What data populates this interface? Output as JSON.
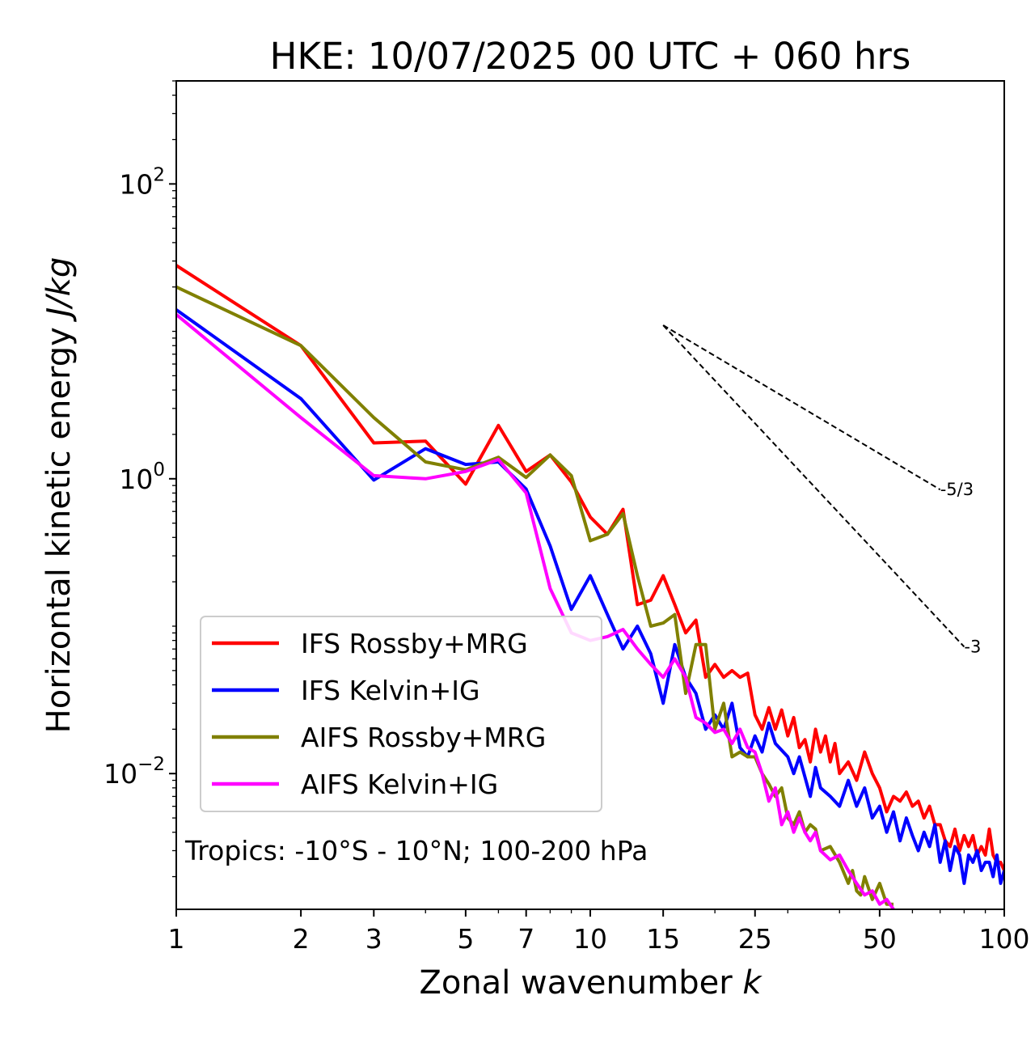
{
  "chart_data": {
    "type": "line",
    "title": "HKE: 10/07/2025 00 UTC + 060 hrs",
    "xlabel": "Zonal wavenumber",
    "xlabel_var": "k",
    "ylabel": "Horizontal kinetic energy",
    "ylabel_units": "J/kg",
    "xscale": "log",
    "yscale": "log",
    "xlim": [
      1,
      100
    ],
    "ylim": [
      0.0012,
      500
    ],
    "x_ticks": [
      {
        "value": 1,
        "label": "1"
      },
      {
        "value": 2,
        "label": "2"
      },
      {
        "value": 3,
        "label": "3"
      },
      {
        "value": 5,
        "label": "5"
      },
      {
        "value": 7,
        "label": "7"
      },
      {
        "value": 10,
        "label": "10"
      },
      {
        "value": 15,
        "label": "15"
      },
      {
        "value": 25,
        "label": "25"
      },
      {
        "value": 50,
        "label": "50"
      },
      {
        "value": 100,
        "label": "100"
      }
    ],
    "y_ticks": [
      {
        "value": 0.01,
        "base": "10",
        "exp": "−2"
      },
      {
        "value": 1,
        "base": "10",
        "exp": "0"
      },
      {
        "value": 100,
        "base": "10",
        "exp": "2"
      }
    ],
    "grid": false,
    "legend_position": "lower-left",
    "annotation": "Tropics: -10°S - 10°N; 100-200 hPa",
    "reference_lines": [
      {
        "label": "-5/3",
        "slope": -1.6667,
        "x": [
          15,
          70
        ],
        "y_start": 11.0
      },
      {
        "label": "-3",
        "slope": -3,
        "x": [
          15,
          80
        ],
        "y_start": 11.0
      }
    ],
    "series": [
      {
        "name": "IFS Rossby+MRG",
        "color": "#ff0000",
        "points": [
          [
            1,
            28
          ],
          [
            2,
            8
          ],
          [
            3,
            1.75
          ],
          [
            4,
            1.8
          ],
          [
            5,
            0.92
          ],
          [
            6,
            2.3
          ],
          [
            7,
            1.12
          ],
          [
            8,
            1.45
          ],
          [
            9,
            0.95
          ],
          [
            10,
            0.55
          ],
          [
            11,
            0.42
          ],
          [
            12,
            0.62
          ],
          [
            13,
            0.14
          ],
          [
            14,
            0.15
          ],
          [
            15,
            0.22
          ],
          [
            16,
            0.14
          ],
          [
            17,
            0.09
          ],
          [
            18,
            0.11
          ],
          [
            19,
            0.045
          ],
          [
            20,
            0.055
          ],
          [
            21,
            0.045
          ],
          [
            22,
            0.05
          ],
          [
            23,
            0.045
          ],
          [
            24,
            0.048
          ],
          [
            25,
            0.025
          ],
          [
            26,
            0.02
          ],
          [
            27,
            0.028
          ],
          [
            28,
            0.02
          ],
          [
            29,
            0.027
          ],
          [
            30,
            0.018
          ],
          [
            31,
            0.024
          ],
          [
            32,
            0.015
          ],
          [
            33,
            0.017
          ],
          [
            34,
            0.012
          ],
          [
            35,
            0.02
          ],
          [
            36,
            0.014
          ],
          [
            37,
            0.018
          ],
          [
            38,
            0.012
          ],
          [
            39,
            0.016
          ],
          [
            40,
            0.01
          ],
          [
            42,
            0.012
          ],
          [
            44,
            0.009
          ],
          [
            46,
            0.014
          ],
          [
            48,
            0.01
          ],
          [
            50,
            0.008
          ],
          [
            52,
            0.0055
          ],
          [
            54,
            0.007
          ],
          [
            56,
            0.0065
          ],
          [
            58,
            0.0075
          ],
          [
            60,
            0.006
          ],
          [
            62,
            0.0065
          ],
          [
            64,
            0.005
          ],
          [
            66,
            0.006
          ],
          [
            68,
            0.0045
          ],
          [
            70,
            0.0045
          ],
          [
            72,
            0.0035
          ],
          [
            74,
            0.0032
          ],
          [
            76,
            0.0042
          ],
          [
            78,
            0.003
          ],
          [
            80,
            0.0038
          ],
          [
            82,
            0.0032
          ],
          [
            84,
            0.0038
          ],
          [
            86,
            0.0028
          ],
          [
            88,
            0.0032
          ],
          [
            90,
            0.0028
          ],
          [
            92,
            0.0042
          ],
          [
            94,
            0.0028
          ],
          [
            96,
            0.0025
          ],
          [
            98,
            0.0025
          ],
          [
            100,
            0.0022
          ]
        ]
      },
      {
        "name": "IFS Kelvin+IG",
        "color": "#0000ff",
        "points": [
          [
            1,
            14
          ],
          [
            2,
            3.5
          ],
          [
            3,
            0.98
          ],
          [
            4,
            1.6
          ],
          [
            5,
            1.25
          ],
          [
            6,
            1.3
          ],
          [
            7,
            0.85
          ],
          [
            8,
            0.35
          ],
          [
            9,
            0.13
          ],
          [
            10,
            0.22
          ],
          [
            11,
            0.12
          ],
          [
            12,
            0.07
          ],
          [
            13,
            0.1
          ],
          [
            14,
            0.065
          ],
          [
            15,
            0.03
          ],
          [
            16,
            0.075
          ],
          [
            17,
            0.045
          ],
          [
            18,
            0.035
          ],
          [
            19,
            0.02
          ],
          [
            20,
            0.025
          ],
          [
            21,
            0.02
          ],
          [
            22,
            0.03
          ],
          [
            23,
            0.015
          ],
          [
            24,
            0.013
          ],
          [
            25,
            0.018
          ],
          [
            26,
            0.014
          ],
          [
            27,
            0.022
          ],
          [
            28,
            0.016
          ],
          [
            30,
            0.013
          ],
          [
            31,
            0.01
          ],
          [
            32,
            0.013
          ],
          [
            34,
            0.007
          ],
          [
            35,
            0.011
          ],
          [
            36,
            0.008
          ],
          [
            38,
            0.007
          ],
          [
            40,
            0.006
          ],
          [
            42,
            0.009
          ],
          [
            44,
            0.006
          ],
          [
            46,
            0.008
          ],
          [
            48,
            0.005
          ],
          [
            50,
            0.006
          ],
          [
            52,
            0.004
          ],
          [
            54,
            0.0055
          ],
          [
            56,
            0.0035
          ],
          [
            58,
            0.005
          ],
          [
            60,
            0.0038
          ],
          [
            62,
            0.003
          ],
          [
            64,
            0.004
          ],
          [
            66,
            0.0032
          ],
          [
            68,
            0.0045
          ],
          [
            70,
            0.0025
          ],
          [
            72,
            0.0035
          ],
          [
            74,
            0.0022
          ],
          [
            76,
            0.0032
          ],
          [
            78,
            0.0028
          ],
          [
            80,
            0.0018
          ],
          [
            82,
            0.0028
          ],
          [
            84,
            0.0025
          ],
          [
            86,
            0.003
          ],
          [
            88,
            0.0022
          ],
          [
            90,
            0.0025
          ],
          [
            92,
            0.0025
          ],
          [
            94,
            0.002
          ],
          [
            96,
            0.0028
          ],
          [
            98,
            0.0018
          ],
          [
            100,
            0.0022
          ]
        ]
      },
      {
        "name": "AIFS Rossby+MRG",
        "color": "#808000",
        "points": [
          [
            1,
            20
          ],
          [
            2,
            8
          ],
          [
            3,
            2.6
          ],
          [
            4,
            1.3
          ],
          [
            5,
            1.15
          ],
          [
            6,
            1.4
          ],
          [
            7,
            1.02
          ],
          [
            8,
            1.45
          ],
          [
            9,
            1.05
          ],
          [
            10,
            0.38
          ],
          [
            11,
            0.42
          ],
          [
            12,
            0.58
          ],
          [
            13,
            0.22
          ],
          [
            14,
            0.1
          ],
          [
            15,
            0.105
          ],
          [
            16,
            0.12
          ],
          [
            17,
            0.035
          ],
          [
            18,
            0.075
          ],
          [
            19,
            0.075
          ],
          [
            20,
            0.02
          ],
          [
            21,
            0.03
          ],
          [
            22,
            0.013
          ],
          [
            23,
            0.014
          ],
          [
            24,
            0.013
          ],
          [
            25,
            0.013
          ],
          [
            26,
            0.01
          ],
          [
            27,
            0.0085
          ],
          [
            28,
            0.007
          ],
          [
            29,
            0.008
          ],
          [
            30,
            0.005
          ],
          [
            31,
            0.0045
          ],
          [
            32,
            0.0055
          ],
          [
            33,
            0.004
          ],
          [
            34,
            0.0045
          ],
          [
            35,
            0.0042
          ],
          [
            36,
            0.003
          ],
          [
            38,
            0.0032
          ],
          [
            40,
            0.0025
          ],
          [
            42,
            0.0018
          ],
          [
            43,
            0.0022
          ],
          [
            44,
            0.0016
          ],
          [
            45,
            0.0015
          ],
          [
            46,
            0.002
          ],
          [
            48,
            0.0014
          ],
          [
            50,
            0.0018
          ],
          [
            52,
            0.0013
          ],
          [
            54,
            0.0013
          ]
        ]
      },
      {
        "name": "AIFS Kelvin+IG",
        "color": "#ff00ff",
        "points": [
          [
            1,
            13
          ],
          [
            2,
            2.6
          ],
          [
            3,
            1.05
          ],
          [
            4,
            1.0
          ],
          [
            5,
            1.12
          ],
          [
            6,
            1.35
          ],
          [
            7,
            0.8
          ],
          [
            8,
            0.18
          ],
          [
            9,
            0.09
          ],
          [
            10,
            0.08
          ],
          [
            11,
            0.085
          ],
          [
            12,
            0.095
          ],
          [
            13,
            0.07
          ],
          [
            14,
            0.055
          ],
          [
            15,
            0.045
          ],
          [
            16,
            0.06
          ],
          [
            17,
            0.045
          ],
          [
            18,
            0.024
          ],
          [
            19,
            0.022
          ],
          [
            20,
            0.019
          ],
          [
            21,
            0.02
          ],
          [
            22,
            0.016
          ],
          [
            23,
            0.02
          ],
          [
            24,
            0.015
          ],
          [
            25,
            0.014
          ],
          [
            26,
            0.01
          ],
          [
            27,
            0.0065
          ],
          [
            28,
            0.008
          ],
          [
            29,
            0.0045
          ],
          [
            30,
            0.0055
          ],
          [
            31,
            0.004
          ],
          [
            32,
            0.005
          ],
          [
            33,
            0.004
          ],
          [
            34,
            0.0035
          ],
          [
            35,
            0.004
          ],
          [
            36,
            0.003
          ],
          [
            38,
            0.0026
          ],
          [
            40,
            0.0028
          ],
          [
            42,
            0.0022
          ],
          [
            44,
            0.0018
          ],
          [
            46,
            0.0015
          ],
          [
            48,
            0.0016
          ],
          [
            50,
            0.0013
          ],
          [
            52,
            0.0014
          ],
          [
            54,
            0.0012
          ]
        ]
      }
    ]
  }
}
